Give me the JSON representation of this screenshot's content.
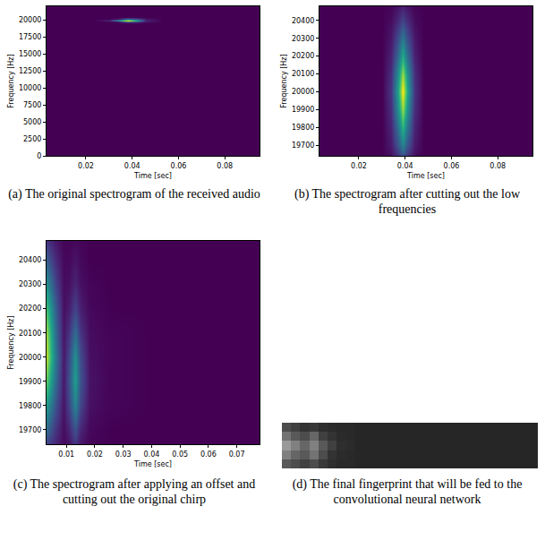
{
  "chart_data": [
    {
      "type": "heatmap",
      "caption": "(a) The original spectrogram of the received audio",
      "x_label": "Time [sec]",
      "y_label": "Frequency [Hz]",
      "color": "viridis",
      "grid": false,
      "xlim": [
        0.003,
        0.095
      ],
      "ylim": [
        0,
        22050
      ],
      "zlim": [
        0,
        1
      ],
      "xticks": [
        0.02,
        0.04,
        0.06,
        0.08
      ],
      "yticks": [
        0,
        2500,
        5000,
        7500,
        10000,
        12500,
        15000,
        17500,
        20000
      ],
      "x": [
        0.003,
        0.013,
        0.023,
        0.03,
        0.034,
        0.038,
        0.042,
        0.046,
        0.053,
        0.063,
        0.073,
        0.083,
        0.095
      ],
      "y": [
        0,
        5000,
        10000,
        15000,
        19500,
        19800,
        20000,
        20200,
        20500,
        22050
      ],
      "cells": [
        [
          0,
          0,
          0,
          0,
          0,
          0,
          0,
          0,
          0,
          0,
          0,
          0,
          0
        ],
        [
          0,
          0,
          0,
          0,
          0,
          0,
          0,
          0,
          0,
          0,
          0,
          0,
          0
        ],
        [
          0,
          0,
          0,
          0,
          0,
          0,
          0,
          0,
          0,
          0,
          0,
          0,
          0
        ],
        [
          0,
          0,
          0,
          0,
          0,
          0,
          0,
          0,
          0,
          0,
          0,
          0,
          0
        ],
        [
          0,
          0,
          0,
          0,
          0,
          0,
          0,
          0,
          0,
          0,
          0,
          0,
          0
        ],
        [
          0,
          0,
          0,
          0,
          0.05,
          0.3,
          0.2,
          0.05,
          0,
          0,
          0,
          0,
          0
        ],
        [
          0,
          0,
          0,
          0.1,
          0.5,
          1,
          0.6,
          0.1,
          0,
          0,
          0,
          0,
          0
        ],
        [
          0,
          0,
          0,
          0,
          0.05,
          0.3,
          0.2,
          0.05,
          0,
          0,
          0,
          0,
          0
        ],
        [
          0,
          0,
          0,
          0,
          0,
          0,
          0,
          0,
          0,
          0,
          0,
          0,
          0
        ],
        [
          0,
          0,
          0,
          0,
          0,
          0,
          0,
          0,
          0,
          0,
          0,
          0,
          0
        ]
      ]
    },
    {
      "type": "heatmap",
      "caption": "(b) The spectrogram after cutting out the low frequencies",
      "x_label": "Time [sec]",
      "y_label": "Frequency [Hz]",
      "color": "viridis",
      "grid": false,
      "xlim": [
        0.003,
        0.095
      ],
      "ylim": [
        19640,
        20480
      ],
      "zlim": [
        0,
        1
      ],
      "xticks": [
        0.02,
        0.04,
        0.06,
        0.08
      ],
      "yticks": [
        19700,
        19800,
        19900,
        20000,
        20100,
        20200,
        20300,
        20400
      ],
      "x": [
        0.003,
        0.02,
        0.03,
        0.034,
        0.037,
        0.039,
        0.041,
        0.044,
        0.048,
        0.06,
        0.095
      ],
      "y": [
        19640,
        19700,
        19800,
        19900,
        20000,
        20100,
        20200,
        20300,
        20400,
        20480
      ],
      "cells": [
        [
          0,
          0,
          0,
          0.04,
          0.15,
          0.25,
          0.15,
          0.04,
          0,
          0,
          0
        ],
        [
          0,
          0,
          0,
          0.07,
          0.27,
          0.45,
          0.27,
          0.07,
          0,
          0,
          0
        ],
        [
          0,
          0,
          0,
          0.1,
          0.39,
          0.65,
          0.39,
          0.1,
          0,
          0,
          0
        ],
        [
          0,
          0,
          0,
          0.13,
          0.51,
          0.85,
          0.51,
          0.13,
          0,
          0,
          0
        ],
        [
          0,
          0,
          0,
          0.15,
          0.6,
          1,
          0.6,
          0.15,
          0,
          0,
          0
        ],
        [
          0,
          0,
          0,
          0.13,
          0.51,
          0.85,
          0.51,
          0.13,
          0,
          0,
          0
        ],
        [
          0,
          0,
          0,
          0.09,
          0.36,
          0.6,
          0.36,
          0.09,
          0,
          0,
          0
        ],
        [
          0,
          0,
          0,
          0.06,
          0.24,
          0.4,
          0.24,
          0.06,
          0,
          0,
          0
        ],
        [
          0,
          0,
          0,
          0.03,
          0.12,
          0.2,
          0.12,
          0.03,
          0,
          0,
          0
        ],
        [
          0,
          0,
          0,
          0.01,
          0.05,
          0.08,
          0.05,
          0.01,
          0,
          0,
          0
        ]
      ]
    },
    {
      "type": "heatmap",
      "caption": "(c) The spectrogram after applying an offset and cutting out the original chirp",
      "x_label": "Time [sec]",
      "y_label": "Frequency [Hz]",
      "color": "viridis",
      "grid": false,
      "xlim": [
        0.003,
        0.078
      ],
      "ylim": [
        19640,
        20480
      ],
      "zlim": [
        0,
        1
      ],
      "xticks": [
        0.01,
        0.02,
        0.03,
        0.04,
        0.05,
        0.06,
        0.07
      ],
      "yticks": [
        19700,
        19800,
        19900,
        20000,
        20100,
        20200,
        20300,
        20400
      ],
      "x": [
        0.003,
        0.006,
        0.009,
        0.011,
        0.013,
        0.015,
        0.018,
        0.025,
        0.04,
        0.06,
        0.078
      ],
      "y": [
        19640,
        19700,
        19800,
        19900,
        20000,
        20100,
        20200,
        20300,
        20400,
        20480
      ],
      "cells": [
        [
          0.2,
          0.1,
          0.02,
          0.05,
          0.15,
          0.05,
          0.01,
          0,
          0,
          0,
          0
        ],
        [
          0.35,
          0.15,
          0.03,
          0.1,
          0.25,
          0.1,
          0.02,
          0,
          0,
          0,
          0
        ],
        [
          0.55,
          0.25,
          0.05,
          0.2,
          0.45,
          0.2,
          0.04,
          0.01,
          0,
          0,
          0
        ],
        [
          0.75,
          0.35,
          0.06,
          0.25,
          0.55,
          0.25,
          0.05,
          0.01,
          0,
          0,
          0
        ],
        [
          0.9,
          0.4,
          0.06,
          0.22,
          0.5,
          0.22,
          0.04,
          0.01,
          0,
          0,
          0
        ],
        [
          0.85,
          0.35,
          0.05,
          0.15,
          0.35,
          0.15,
          0.03,
          0.01,
          0,
          0,
          0
        ],
        [
          0.7,
          0.3,
          0.04,
          0.08,
          0.2,
          0.08,
          0.02,
          0,
          0,
          0,
          0
        ],
        [
          0.5,
          0.2,
          0.03,
          0.04,
          0.1,
          0.04,
          0.01,
          0,
          0,
          0,
          0
        ],
        [
          0.3,
          0.12,
          0.02,
          0.02,
          0.05,
          0.02,
          0,
          0,
          0,
          0,
          0
        ],
        [
          0.15,
          0.06,
          0.01,
          0.01,
          0.02,
          0.01,
          0,
          0,
          0,
          0,
          0
        ]
      ]
    },
    {
      "type": "heatmap",
      "caption": "(d) The final fingerprint that will be fed to the convolutional neural network",
      "color": "gray",
      "grid": false,
      "tick_labels": false,
      "zlim": [
        0,
        1
      ],
      "cells": [
        [
          0.3,
          0.25,
          0.2,
          0.22,
          0.18,
          0.17,
          0.16,
          0.16,
          0.15,
          0.15,
          0.15,
          0.15,
          0.15,
          0.15,
          0.15,
          0.15,
          0.15,
          0.15,
          0.15,
          0.15,
          0.15,
          0.15,
          0.15,
          0.15,
          0.15,
          0.15,
          0.15,
          0.15
        ],
        [
          0.45,
          0.35,
          0.3,
          0.4,
          0.25,
          0.2,
          0.17,
          0.16,
          0.15,
          0.15,
          0.15,
          0.15,
          0.15,
          0.15,
          0.15,
          0.15,
          0.15,
          0.15,
          0.15,
          0.15,
          0.15,
          0.15,
          0.15,
          0.15,
          0.15,
          0.15,
          0.15,
          0.15
        ],
        [
          0.6,
          0.5,
          0.4,
          0.5,
          0.35,
          0.25,
          0.18,
          0.17,
          0.15,
          0.15,
          0.15,
          0.15,
          0.15,
          0.15,
          0.15,
          0.15,
          0.15,
          0.15,
          0.15,
          0.15,
          0.15,
          0.15,
          0.15,
          0.15,
          0.15,
          0.15,
          0.15,
          0.15
        ],
        [
          0.5,
          0.4,
          0.35,
          0.45,
          0.3,
          0.2,
          0.17,
          0.16,
          0.15,
          0.15,
          0.15,
          0.15,
          0.15,
          0.15,
          0.15,
          0.15,
          0.15,
          0.15,
          0.15,
          0.15,
          0.15,
          0.15,
          0.15,
          0.15,
          0.15,
          0.15,
          0.15,
          0.15
        ],
        [
          0.35,
          0.3,
          0.25,
          0.3,
          0.22,
          0.18,
          0.16,
          0.16,
          0.15,
          0.15,
          0.15,
          0.15,
          0.15,
          0.15,
          0.15,
          0.15,
          0.15,
          0.15,
          0.15,
          0.15,
          0.15,
          0.15,
          0.15,
          0.15,
          0.15,
          0.15,
          0.15,
          0.15
        ]
      ]
    }
  ]
}
